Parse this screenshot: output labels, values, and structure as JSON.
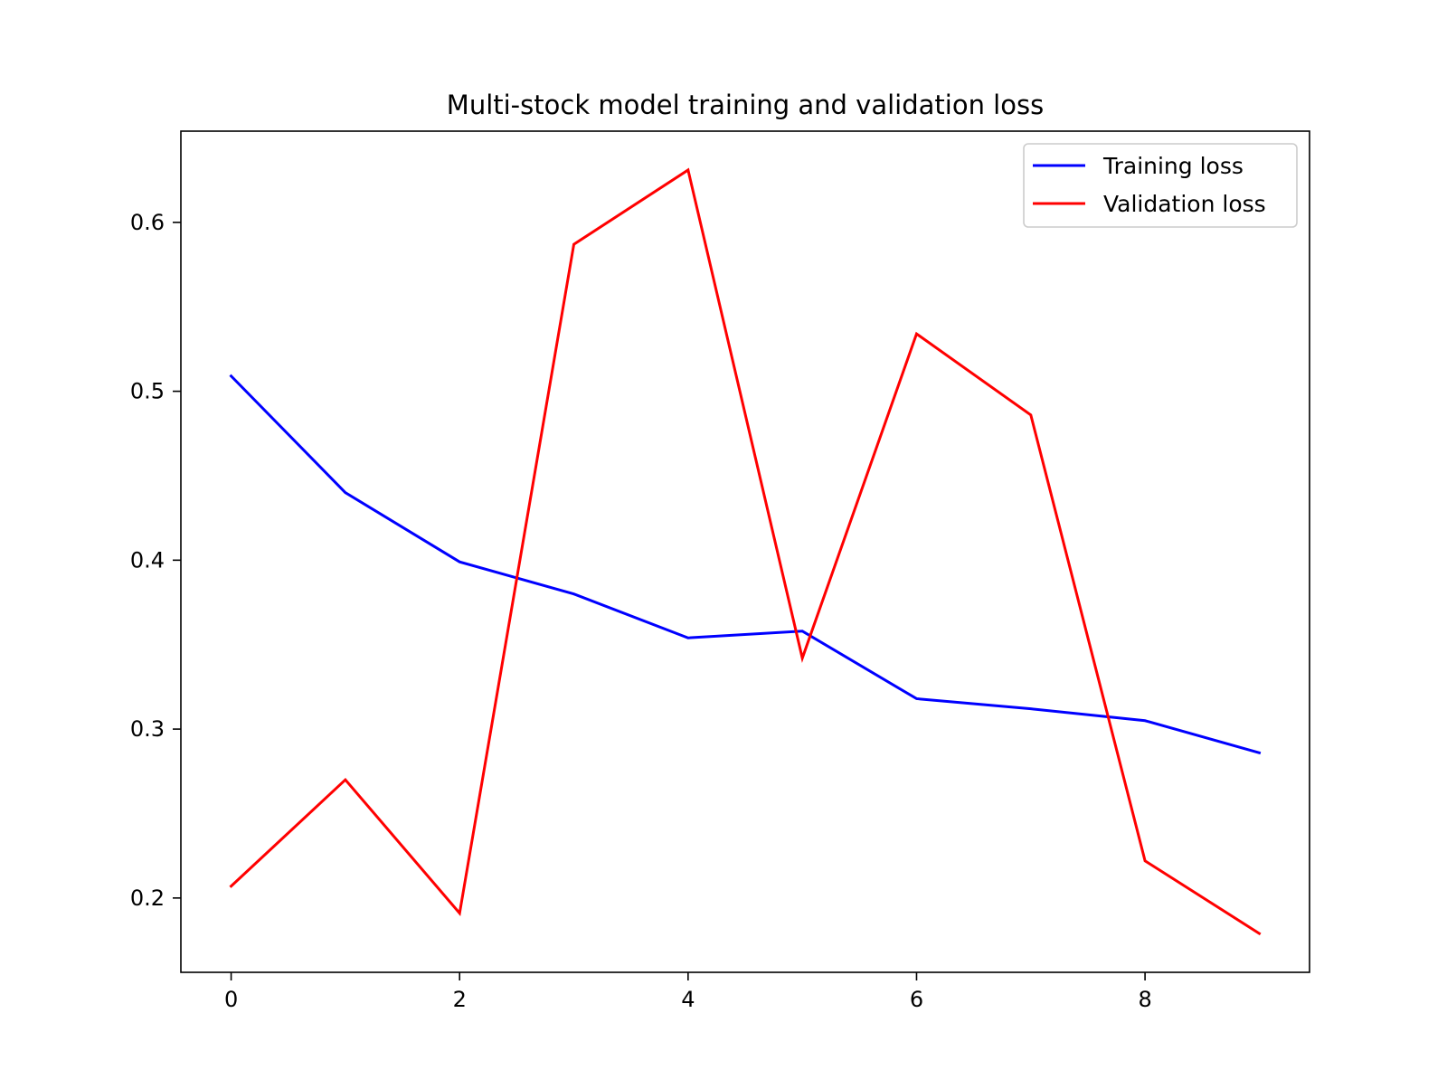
{
  "chart_data": {
    "type": "line",
    "title": "Multi-stock model training and validation loss",
    "xlabel": "",
    "ylabel": "",
    "x": [
      0,
      1,
      2,
      3,
      4,
      5,
      6,
      7,
      8,
      9
    ],
    "xlim": [
      -0.44,
      9.44
    ],
    "ylim": [
      0.156,
      0.654
    ],
    "xticks": [
      0,
      2,
      4,
      6,
      8
    ],
    "yticks": [
      0.2,
      0.3,
      0.4,
      0.5,
      0.6
    ],
    "grid": false,
    "legend_position": "top-right",
    "series": [
      {
        "name": "Training loss",
        "color": "#0000ff",
        "values": [
          0.509,
          0.44,
          0.399,
          0.38,
          0.354,
          0.358,
          0.318,
          0.312,
          0.305,
          0.286
        ]
      },
      {
        "name": "Validation loss",
        "color": "#ff0000",
        "values": [
          0.207,
          0.27,
          0.191,
          0.587,
          0.631,
          0.342,
          0.534,
          0.486,
          0.222,
          0.179
        ]
      }
    ]
  }
}
